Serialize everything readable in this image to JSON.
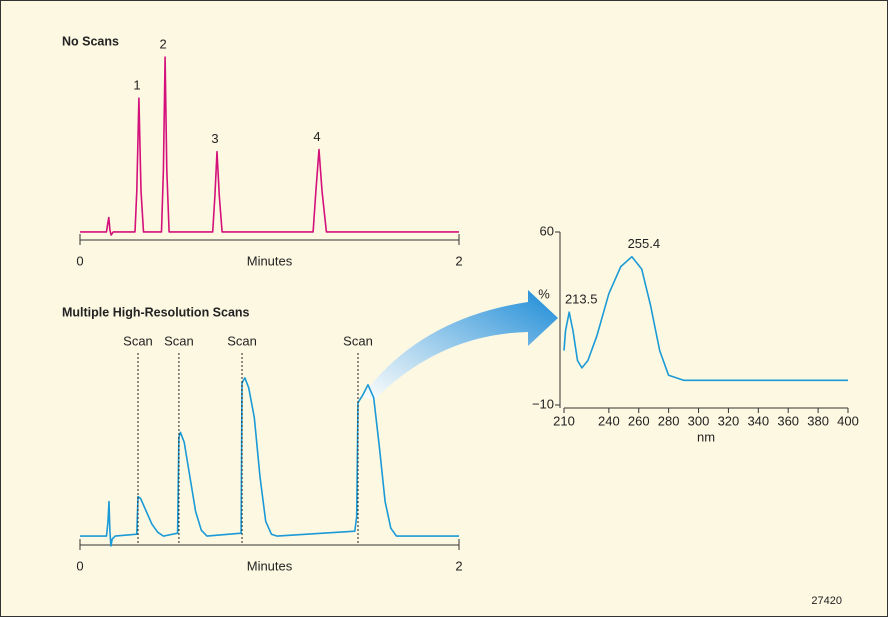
{
  "chart_data": [
    {
      "type": "line",
      "title": "No Scans",
      "xlabel": "Minutes",
      "xlim": [
        0,
        2
      ],
      "xticks": [
        0,
        2
      ],
      "ylim": [
        -3,
        172
      ],
      "x": [
        0,
        0.14,
        0.146,
        0.152,
        0.158,
        0.164,
        0.175,
        0.29,
        0.3,
        0.311,
        0.322,
        0.335,
        0.43,
        0.44,
        0.449,
        0.458,
        0.47,
        0.7,
        0.712,
        0.723,
        0.735,
        0.75,
        1.23,
        1.245,
        1.261,
        1.277,
        1.3,
        2
      ],
      "series": [
        {
          "color": "#d4107a",
          "values": [
            0,
            0,
            8,
            14,
            2,
            -3,
            0,
            0,
            40,
            130,
            40,
            0,
            0,
            60,
            170,
            60,
            0,
            0,
            35,
            78,
            35,
            0,
            0,
            40,
            80,
            40,
            0,
            0
          ]
        }
      ],
      "peak_labels": [
        {
          "label": "1",
          "x": 0.311,
          "y": 130
        },
        {
          "label": "2",
          "x": 0.449,
          "y": 170
        },
        {
          "label": "3",
          "x": 0.723,
          "y": 78
        },
        {
          "label": "4",
          "x": 1.261,
          "y": 80
        }
      ]
    },
    {
      "type": "line",
      "title": "Multiple High-Resolution Scans",
      "xlabel": "Minutes",
      "xlim": [
        0,
        2
      ],
      "xticks": [
        0,
        2
      ],
      "ylim": [
        -12,
        170
      ],
      "x": [
        0,
        0.14,
        0.148,
        0.153,
        0.158,
        0.163,
        0.17,
        0.185,
        0.3,
        0.306,
        0.32,
        0.35,
        0.38,
        0.41,
        0.44,
        0.515,
        0.522,
        0.53,
        0.55,
        0.58,
        0.61,
        0.64,
        0.67,
        0.85,
        0.855,
        0.87,
        0.89,
        0.92,
        0.95,
        0.98,
        1.01,
        1.04,
        1.45,
        1.46,
        1.467,
        1.49,
        1.52,
        1.55,
        1.58,
        1.61,
        1.64,
        1.67,
        2
      ],
      "series": [
        {
          "color": "#1a9ad6",
          "values": [
            0,
            0,
            15,
            35,
            5,
            -10,
            -3,
            0,
            2,
            40,
            38,
            25,
            12,
            4,
            0,
            3,
            100,
            105,
            95,
            60,
            25,
            6,
            0,
            3,
            155,
            160,
            150,
            120,
            60,
            15,
            2,
            0,
            5,
            20,
            135,
            142,
            153,
            140,
            90,
            35,
            8,
            0,
            0
          ]
        }
      ],
      "scans": [
        {
          "label": "Scan",
          "x": 0.306
        },
        {
          "label": "Scan",
          "x": 0.522
        },
        {
          "label": "Scan",
          "x": 0.855
        },
        {
          "label": "Scan",
          "x": 1.467
        }
      ]
    },
    {
      "type": "line",
      "xlabel": "nm",
      "ylabel": "%",
      "xlim": [
        210,
        400
      ],
      "xticks": [
        210,
        240,
        260,
        280,
        300,
        320,
        340,
        360,
        380,
        400
      ],
      "ylim": [
        -10,
        60
      ],
      "yticks": [
        {
          "value": -10,
          "label": "−10"
        },
        60
      ],
      "x": [
        210,
        211,
        213.5,
        216,
        219,
        222,
        226,
        232,
        240,
        248,
        255.4,
        262,
        268,
        274,
        280,
        290,
        300,
        400
      ],
      "series": [
        {
          "color": "#1a9ad6",
          "values": [
            12,
            20,
            27.6,
            20,
            8,
            5,
            8,
            18,
            35,
            46,
            50,
            45,
            30,
            12,
            2,
            0,
            0,
            0
          ]
        }
      ],
      "peak_labels": [
        {
          "x": 213.5,
          "y": 27.6
        },
        {
          "x": 255.4,
          "y": 50
        }
      ]
    }
  ],
  "footer": {
    "id": "27420"
  }
}
